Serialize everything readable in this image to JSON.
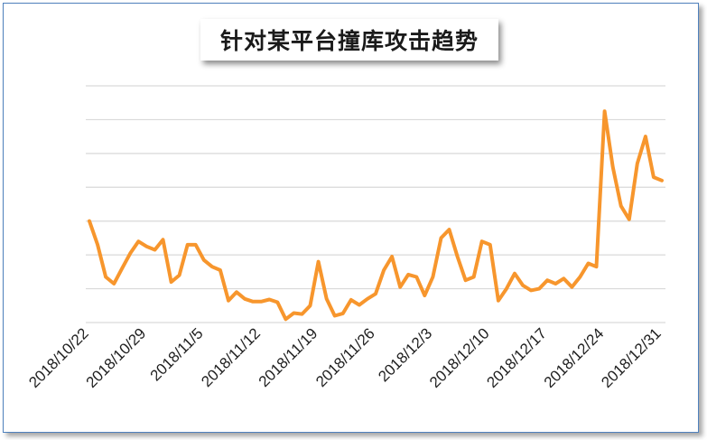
{
  "chart_data": {
    "type": "line",
    "title": "针对某平台撞库攻击趋势",
    "xlabel": "",
    "ylabel": "",
    "ylim": [
      0,
      7
    ],
    "y_axis_labels_shown": false,
    "grid": "horizontal",
    "legend": "none",
    "x_tick_labels": [
      "2018/10/22",
      "2018/10/29",
      "2018/11/5",
      "2018/11/12",
      "2018/11/19",
      "2018/11/26",
      "2018/12/3",
      "2018/12/10",
      "2018/12/17",
      "2018/12/24",
      "2018/12/31"
    ],
    "series": [
      {
        "color": "#f7962d",
        "values": [
          3.0,
          2.3,
          1.35,
          1.15,
          1.6,
          2.05,
          2.4,
          2.25,
          2.15,
          2.45,
          1.2,
          1.4,
          2.3,
          2.3,
          1.85,
          1.65,
          1.55,
          0.65,
          0.9,
          0.7,
          0.62,
          0.62,
          0.68,
          0.6,
          0.1,
          0.28,
          0.25,
          0.5,
          1.8,
          0.7,
          0.2,
          0.27,
          0.67,
          0.52,
          0.7,
          0.85,
          1.55,
          1.95,
          1.05,
          1.42,
          1.35,
          0.8,
          1.35,
          2.5,
          2.75,
          1.95,
          1.25,
          1.35,
          2.4,
          2.3,
          0.65,
          1.0,
          1.45,
          1.1,
          0.95,
          1.0,
          1.25,
          1.15,
          1.3,
          1.05,
          1.35,
          1.75,
          1.65,
          6.25,
          4.6,
          3.45,
          3.05,
          4.7,
          5.5,
          4.3,
          4.2
        ]
      }
    ]
  }
}
